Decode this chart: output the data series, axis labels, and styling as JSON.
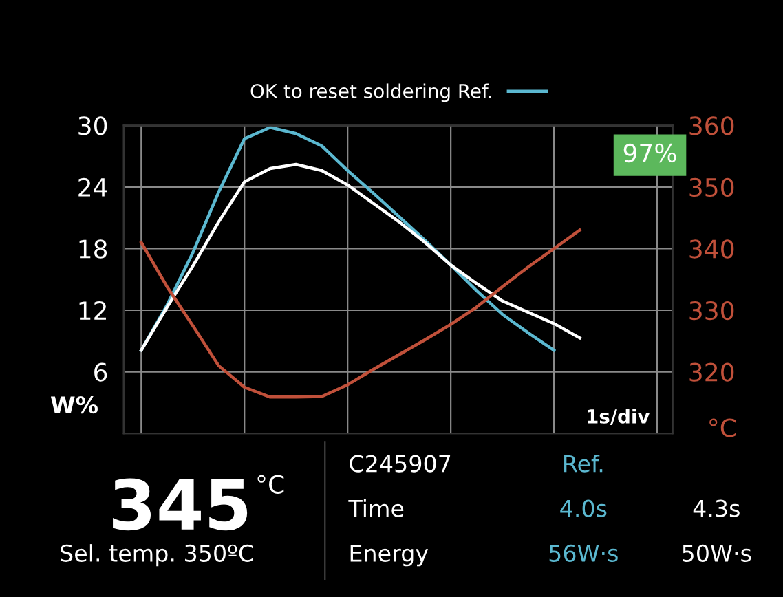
{
  "chart_data": {
    "type": "line",
    "xlabel": "1s/div",
    "ylabel": "W%",
    "y2label": "°C",
    "categories": [
      null,
      null,
      null,
      null,
      null,
      null,
      null,
      null,
      null,
      null,
      null,
      null,
      null,
      null,
      null,
      null,
      null,
      null,
      null,
      null,
      null
    ],
    "ylim": [
      0,
      30
    ],
    "yticks": [
      6,
      12,
      18,
      24,
      30
    ],
    "y2lim": [
      310,
      360
    ],
    "y2ticks": [
      320,
      330,
      340,
      350,
      360
    ],
    "series": [
      {
        "name": "OK to reset soldering Ref.",
        "color": "#5bb8d0",
        "values": [
          8.1,
          12.5,
          17.6,
          23.5,
          28.7,
          29.8,
          29.2,
          28.0,
          25.6,
          23.4,
          21.1,
          18.8,
          16.4,
          13.9,
          11.6,
          9.8,
          8.1,
          null,
          null,
          null,
          null
        ]
      },
      {
        "color": "#ffffff",
        "values": [
          8.1,
          12.3,
          16.3,
          20.6,
          24.5,
          25.8,
          26.2,
          25.6,
          24.2,
          22.4,
          20.6,
          18.6,
          16.4,
          14.6,
          12.9,
          11.8,
          10.7,
          9.3,
          null,
          null,
          null
        ]
      },
      {
        "color": "#c0503a",
        "axis": "y2",
        "values": [
          341.0,
          333.8,
          327.5,
          321.0,
          317.5,
          315.9,
          315.9,
          316.0,
          317.9,
          320.4,
          322.8,
          325.2,
          327.7,
          330.5,
          333.8,
          337.0,
          340.0,
          343.0,
          null,
          null,
          null
        ]
      }
    ],
    "annotations": [
      "97%",
      "345",
      "°C",
      "Sel. temp. 350ºC",
      "C245907",
      "Ref.",
      "Time",
      "4.0s",
      "4.3s",
      "Energy",
      "56W·s",
      "50W·s"
    ],
    "grid": true,
    "legend": "top",
    "marker": "none",
    "line_style": "solid"
  }
}
